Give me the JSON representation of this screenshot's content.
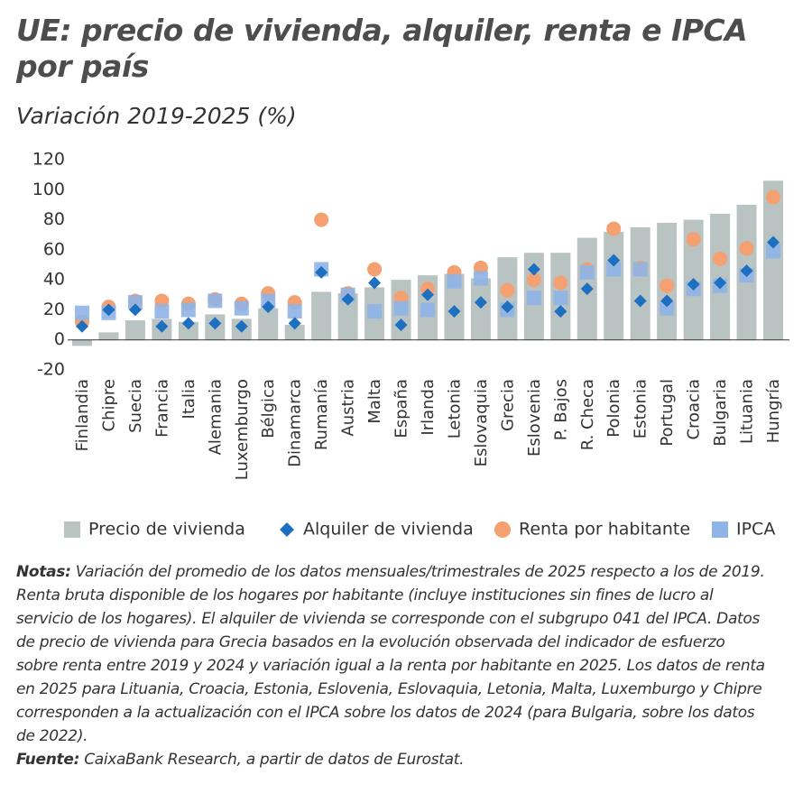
{
  "chart_data": {
    "type": "bar",
    "title": "UE: precio de vivienda, alquiler, renta e IPCA por país",
    "subtitle": "Variación 2019-2025 (%)",
    "categories": [
      "Finlandia",
      "Chipre",
      "Suecia",
      "Francia",
      "Italia",
      "Alemania",
      "Luxemburgo",
      "Bélgica",
      "Dinamarca",
      "Rumanía",
      "Austria",
      "Malta",
      "España",
      "Irlanda",
      "Letonia",
      "Eslovaquia",
      "Grecia",
      "Eslovenia",
      "P. Bajos",
      "R. Checa",
      "Polonia",
      "Estonia",
      "Portugal",
      "Croacia",
      "Bulgaria",
      "Lituania",
      "Hungría"
    ],
    "series": [
      {
        "name": "Precio de vivienda",
        "color": "#b8c3c2",
        "marker": "bar",
        "values": [
          -4,
          5,
          13,
          14,
          12,
          17,
          14,
          21,
          10,
          32,
          31,
          35,
          40,
          43,
          44,
          41,
          55,
          58,
          58,
          68,
          72,
          75,
          78,
          80,
          84,
          90,
          106
        ]
      },
      {
        "name": "Alquiler de vivienda",
        "color": "#1e6fbf",
        "marker": "diamond",
        "values": [
          9,
          20,
          20,
          9,
          11,
          11,
          9,
          22,
          11,
          45,
          27,
          38,
          10,
          30,
          19,
          25,
          22,
          47,
          19,
          34,
          53,
          26,
          26,
          37,
          38,
          46,
          65
        ]
      },
      {
        "name": "Renta por habitante",
        "color": "#f4a070",
        "marker": "circle",
        "values": [
          12,
          22,
          26,
          26,
          24,
          27,
          24,
          31,
          25,
          80,
          31,
          47,
          28,
          34,
          45,
          48,
          33,
          40,
          38,
          47,
          74,
          48,
          36,
          67,
          54,
          61,
          95
        ]
      },
      {
        "name": "IPCA",
        "color": "#8fb4e8",
        "marker": "square",
        "values": [
          18,
          18,
          25,
          19,
          20,
          26,
          21,
          26,
          19,
          47,
          30,
          19,
          21,
          20,
          39,
          41,
          20,
          28,
          28,
          45,
          47,
          47,
          21,
          34,
          36,
          43,
          59
        ]
      }
    ],
    "ylim": [
      -20,
      120
    ],
    "yticks": [
      -20,
      0,
      20,
      40,
      60,
      80,
      100,
      120
    ],
    "notes": {
      "label": "Notas:",
      "text": "Variación del promedio de los datos mensuales/trimestrales de 2025 respecto a los de 2019. Renta bruta disponible de los hogares por habitante (incluye instituciones sin fines de lucro al servicio de los hogares). El alquiler de vivienda se corresponde con el subgrupo 041 del IPCA. Datos de precio de vivienda para Grecia basados en la evolución observada del indicador de esfuerzo sobre renta entre 2019 y 2024 y variación igual a la renta por habitante en 2025. Los datos de renta en 2025 para Lituania, Croacia, Estonia, Eslovenia, Eslovaquia, Letonia, Malta, Luxemburgo y Chipre corresponden a la actualización con el IPCA sobre los datos de 2024 (para Bulgaria, sobre los datos de 2022)."
    },
    "source": {
      "label": "Fuente:",
      "text": "CaixaBank Research, a partir de datos de Eurostat."
    }
  }
}
